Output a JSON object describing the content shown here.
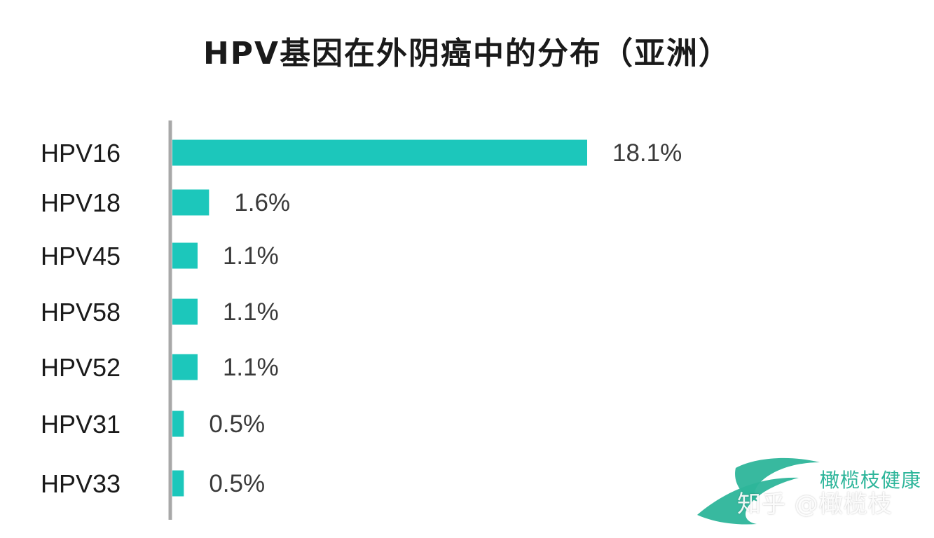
{
  "chart_data": {
    "type": "bar",
    "orientation": "horizontal",
    "title": "HPV基因在外阴癌中的分布（亚洲）",
    "categories": [
      "HPV16",
      "HPV18",
      "HPV45",
      "HPV58",
      "HPV52",
      "HPV31",
      "HPV33"
    ],
    "values": [
      18.1,
      1.6,
      1.1,
      1.1,
      1.1,
      0.5,
      0.5
    ],
    "value_labels": [
      "18.1%",
      "1.6%",
      "1.1%",
      "1.1%",
      "1.1%",
      "0.5%",
      "0.5%"
    ],
    "unit": "%",
    "xlim": [
      0,
      18.1
    ],
    "grid": false,
    "legend": "none",
    "bar_color": "#1cc7bb",
    "axis_color": "#a8a8a8"
  },
  "watermark": {
    "brand": "橄榄枝健康",
    "credit": "知乎 @橄榄枝",
    "logo_color": "#2db59a"
  }
}
